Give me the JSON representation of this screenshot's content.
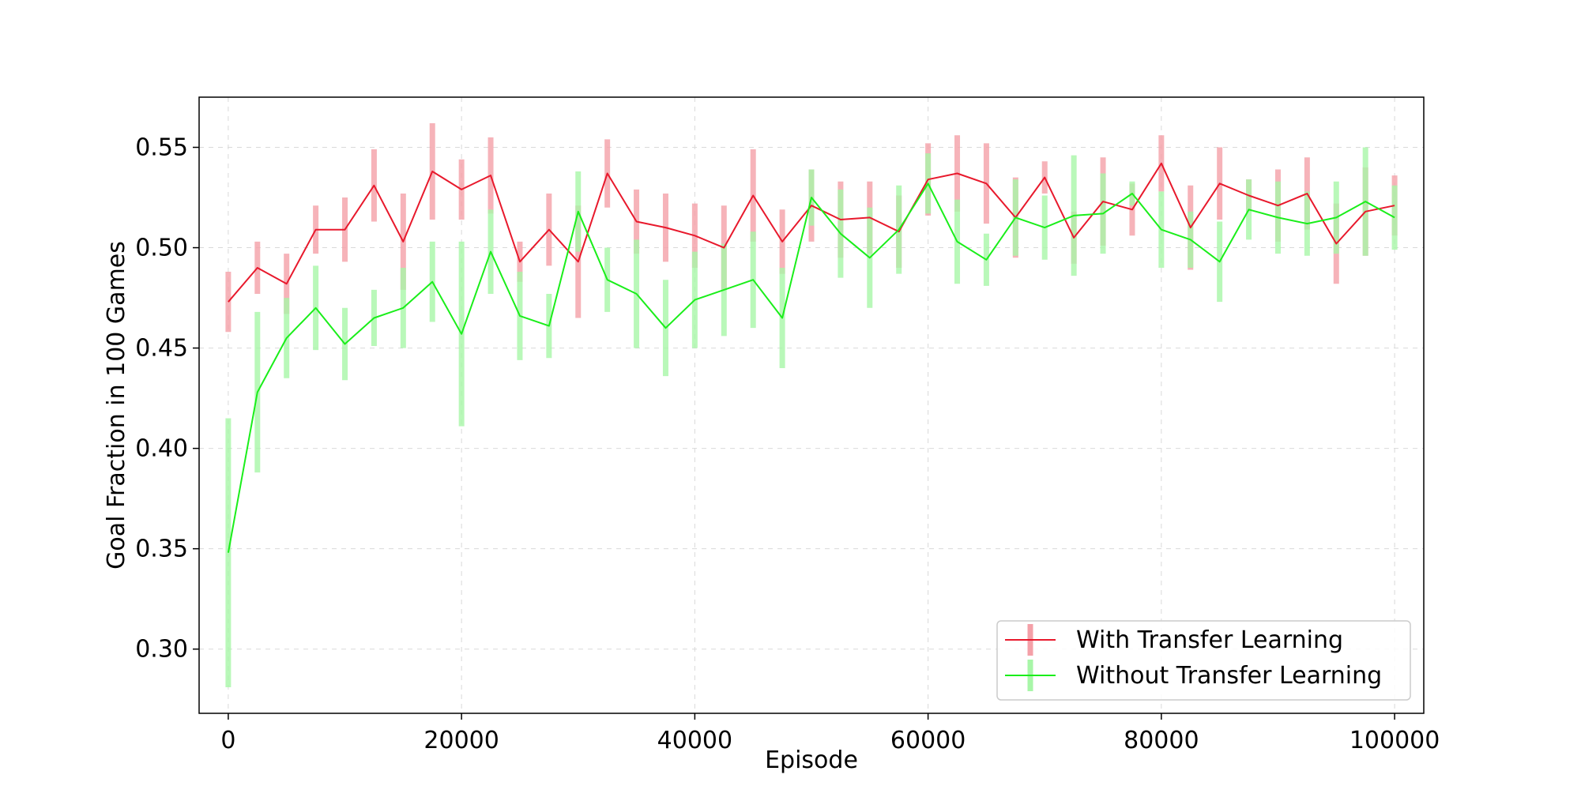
{
  "chart_data": {
    "type": "line",
    "title": "",
    "xlabel": "Episode",
    "ylabel": "Goal Fraction in 100 Games",
    "xlim": [
      -2500,
      102500
    ],
    "ylim": [
      0.268,
      0.575
    ],
    "xticks": [
      0,
      20000,
      40000,
      60000,
      80000,
      100000
    ],
    "xtick_labels": [
      "0",
      "20000",
      "40000",
      "60000",
      "80000",
      "100000"
    ],
    "yticks": [
      0.3,
      0.35,
      0.4,
      0.45,
      0.5,
      0.55
    ],
    "ytick_labels": [
      "0.30",
      "0.35",
      "0.40",
      "0.45",
      "0.50",
      "0.55"
    ],
    "grid": true,
    "legend_position": "lower-right",
    "x": [
      0,
      2500,
      5000,
      7500,
      10000,
      12500,
      15000,
      17500,
      20000,
      22500,
      25000,
      27500,
      30000,
      32500,
      35000,
      37500,
      40000,
      42500,
      45000,
      47500,
      50000,
      52500,
      55000,
      57500,
      60000,
      62500,
      65000,
      67500,
      70000,
      72500,
      75000,
      77500,
      80000,
      82500,
      85000,
      87500,
      90000,
      92500,
      95000,
      97500,
      100000
    ],
    "series": [
      {
        "name": "With Transfer Learning",
        "color": "#e8192c",
        "error_color": "#f4a0a8",
        "values": [
          0.473,
          0.49,
          0.482,
          0.509,
          0.509,
          0.531,
          0.503,
          0.538,
          0.529,
          0.536,
          0.493,
          0.509,
          0.493,
          0.537,
          0.513,
          0.51,
          0.506,
          0.5,
          0.526,
          0.503,
          0.521,
          0.514,
          0.515,
          0.508,
          0.534,
          0.537,
          0.532,
          0.515,
          0.535,
          0.505,
          0.523,
          0.519,
          0.542,
          0.51,
          0.532,
          0.526,
          0.521,
          0.527,
          0.502,
          0.518,
          0.521
        ],
        "errors": [
          0.015,
          0.013,
          0.015,
          0.012,
          0.016,
          0.018,
          0.024,
          0.024,
          0.015,
          0.019,
          0.01,
          0.018,
          0.028,
          0.017,
          0.016,
          0.017,
          0.016,
          0.021,
          0.023,
          0.016,
          0.018,
          0.019,
          0.018,
          0.018,
          0.018,
          0.019,
          0.02,
          0.02,
          0.008,
          0.013,
          0.022,
          0.013,
          0.014,
          0.021,
          0.018,
          0.008,
          0.018,
          0.018,
          0.02,
          0.022,
          0.015
        ]
      },
      {
        "name": "Without Transfer Learning",
        "color": "#1aee1a",
        "error_color": "#a8f6a8",
        "values": [
          0.348,
          0.428,
          0.455,
          0.47,
          0.452,
          0.465,
          0.47,
          0.483,
          0.457,
          0.498,
          0.466,
          0.461,
          0.518,
          0.484,
          0.477,
          0.46,
          0.474,
          0.479,
          0.484,
          0.465,
          0.525,
          0.507,
          0.495,
          0.509,
          0.532,
          0.503,
          0.494,
          0.515,
          0.51,
          0.516,
          0.517,
          0.527,
          0.509,
          0.504,
          0.493,
          0.519,
          0.515,
          0.512,
          0.515,
          0.523,
          0.515
        ],
        "errors": [
          0.067,
          0.04,
          0.02,
          0.021,
          0.018,
          0.014,
          0.02,
          0.02,
          0.046,
          0.021,
          0.022,
          0.016,
          0.02,
          0.016,
          0.027,
          0.024,
          0.024,
          0.023,
          0.024,
          0.025,
          0.014,
          0.022,
          0.025,
          0.022,
          0.015,
          0.021,
          0.013,
          0.019,
          0.016,
          0.03,
          0.02,
          0.006,
          0.019,
          0.014,
          0.02,
          0.015,
          0.018,
          0.016,
          0.018,
          0.027,
          0.016
        ]
      }
    ]
  }
}
